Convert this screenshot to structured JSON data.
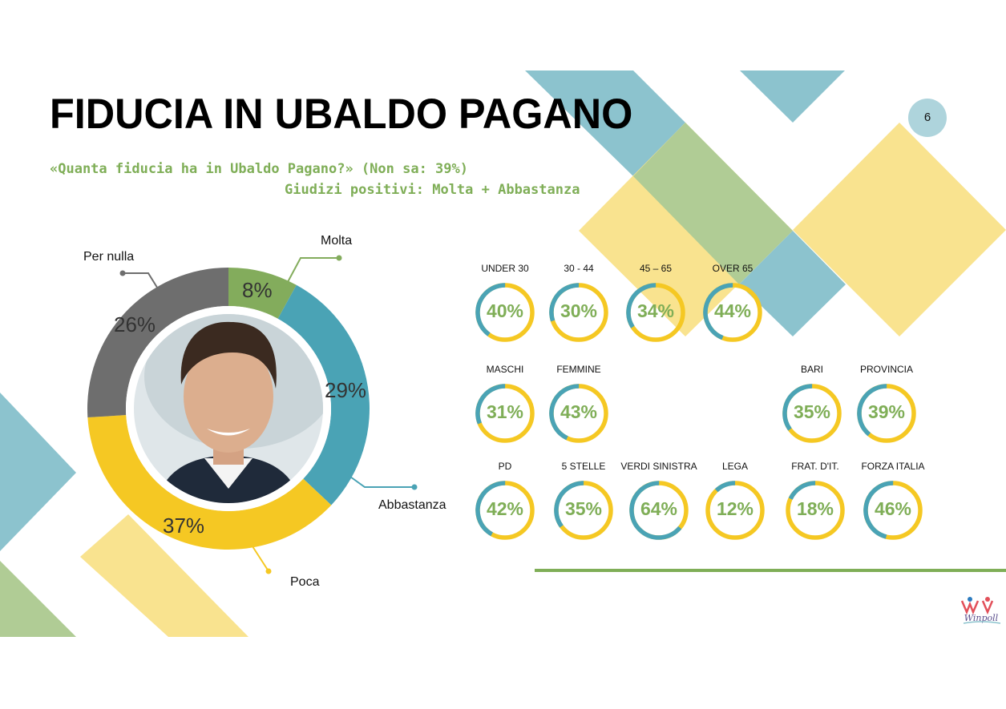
{
  "slide": {
    "title": "FIDUCIA IN UBALDO PAGANO",
    "page_number": "6",
    "subtitle_line1": "«Quanta fiducia ha in Ubaldo Pagano?» (Non sa: 39%)",
    "subtitle_line2": "Giudizi positivi: Molta + Abbastanza",
    "logo_text": "Winpoll"
  },
  "colors": {
    "teal": "#4aa3b5",
    "yellow": "#f5c823",
    "green": "#83ac5c",
    "gray": "#6e6e6e",
    "light_teal": "#8cc3ce",
    "light_green": "#b0cc95",
    "light_yellow": "#f9e38f"
  },
  "chart_data": [
    {
      "type": "pie",
      "variant": "donut",
      "slices": [
        {
          "label": "Molta",
          "value": 8,
          "display": "8%",
          "color": "#83ac5c"
        },
        {
          "label": "Abbastanza",
          "value": 29,
          "display": "29%",
          "color": "#4aa3b5"
        },
        {
          "label": "Poca",
          "value": 37,
          "display": "37%",
          "color": "#f5c823"
        },
        {
          "label": "Per nulla",
          "value": 26,
          "display": "26%",
          "color": "#6e6e6e"
        }
      ]
    },
    {
      "type": "pie",
      "variant": "ring gauges",
      "groups": [
        {
          "name": "UNDER 30",
          "value": 40,
          "display": "40%"
        },
        {
          "name": "30 - 44",
          "value": 30,
          "display": "30%"
        },
        {
          "name": "45 – 65",
          "value": 34,
          "display": "34%"
        },
        {
          "name": "OVER 65",
          "value": 44,
          "display": "44%"
        },
        {
          "name": "MASCHI",
          "value": 31,
          "display": "31%"
        },
        {
          "name": "FEMMINE",
          "value": 43,
          "display": "43%"
        },
        {
          "name": "BARI",
          "value": 35,
          "display": "35%"
        },
        {
          "name": "PROVINCIA",
          "value": 39,
          "display": "39%"
        },
        {
          "name": "PD",
          "value": 42,
          "display": "42%"
        },
        {
          "name": "5 STELLE",
          "value": 35,
          "display": "35%"
        },
        {
          "name": "VERDI SINISTRA",
          "value": 64,
          "display": "64%"
        },
        {
          "name": "LEGA",
          "value": 12,
          "display": "12%"
        },
        {
          "name": "FRAT. D'IT.",
          "value": 18,
          "display": "18%"
        },
        {
          "name": "FORZA ITALIA",
          "value": 46,
          "display": "46%"
        }
      ]
    }
  ]
}
